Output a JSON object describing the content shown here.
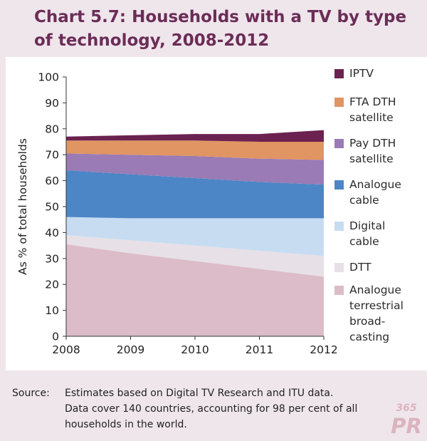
{
  "title": "Chart 5.7: Households with a TV by type of technology, 2008-2012",
  "source": {
    "label": "Source:",
    "lines": [
      "Estimates based on Digital TV Research and ITU data.",
      "Data cover 140 countries, accounting for 98 per cent of all",
      "households in the world."
    ]
  },
  "watermark": {
    "text": "365PR"
  },
  "colors": {
    "page_bg": "#efe6ec",
    "title": "#6b2d57",
    "IPTV": "#6b2250",
    "FTA DTH satellite": "#e09563",
    "Pay DTH satellite": "#9a7bb5",
    "Analogue cable": "#4c86c6",
    "Digital cable": "#c7dcf1",
    "DTT": "#e7e0e7",
    "Analogue terrestrial broadcasting": "#dcbcc8"
  },
  "chart_data": {
    "type": "area",
    "stacked": true,
    "title": "Chart 5.7: Households with a TV by type of technology, 2008-2012",
    "xlabel": "",
    "ylabel": "As % of total households",
    "x": [
      2008,
      2009,
      2010,
      2011,
      2012
    ],
    "ylim": [
      0,
      100
    ],
    "yticks": [
      0,
      10,
      20,
      30,
      40,
      50,
      60,
      70,
      80,
      90,
      100
    ],
    "grid": false,
    "legend_position": "right",
    "series": [
      {
        "name": "Analogue terrestrial broadcasting",
        "label_lines": [
          "Analogue",
          "terrestrial",
          "broad-",
          "casting"
        ],
        "values": [
          35.5,
          32,
          29,
          26,
          23
        ]
      },
      {
        "name": "DTT",
        "label_lines": [
          "DTT"
        ],
        "values": [
          3.5,
          5,
          6,
          7,
          8
        ]
      },
      {
        "name": "Digital cable",
        "label_lines": [
          "Digital",
          "cable"
        ],
        "values": [
          7,
          8.5,
          10.5,
          12.5,
          14.5
        ]
      },
      {
        "name": "Analogue cable",
        "label_lines": [
          "Analogue",
          "cable"
        ],
        "values": [
          18,
          17,
          15.5,
          14,
          13
        ]
      },
      {
        "name": "Pay DTH satellite",
        "label_lines": [
          "Pay DTH",
          "satellite"
        ],
        "values": [
          6.5,
          7.5,
          8.5,
          9,
          9.5
        ]
      },
      {
        "name": "FTA DTH satellite",
        "label_lines": [
          "FTA DTH",
          "satellite"
        ],
        "values": [
          5,
          5.5,
          6,
          6.5,
          7
        ]
      },
      {
        "name": "IPTV",
        "label_lines": [
          "IPTV"
        ],
        "values": [
          1.5,
          2,
          2.5,
          3,
          4.5
        ]
      }
    ]
  }
}
